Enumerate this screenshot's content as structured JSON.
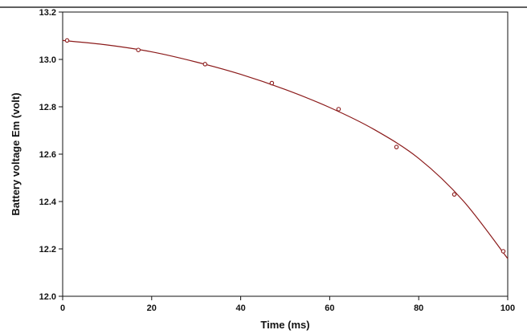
{
  "chart_data": {
    "type": "line",
    "title": "",
    "xlabel": "Time (ms)",
    "ylabel": "Battery voltage Em (volt)",
    "xlim": [
      0,
      100
    ],
    "ylim": [
      12.0,
      13.2
    ],
    "x_ticks": [
      0,
      20,
      40,
      60,
      80,
      100
    ],
    "y_ticks": [
      12.0,
      12.2,
      12.4,
      12.6,
      12.8,
      13.0,
      13.2
    ],
    "x_tick_labels": [
      "0",
      "20",
      "40",
      "60",
      "80",
      "100"
    ],
    "y_tick_labels": [
      "12.0",
      "12.2",
      "12.4",
      "12.6",
      "12.8",
      "13.0",
      "13.2"
    ],
    "grid": false,
    "series": [
      {
        "x": [
          1,
          17,
          32,
          47,
          62,
          75,
          88,
          99
        ],
        "y": [
          13.08,
          13.04,
          12.98,
          12.9,
          12.79,
          12.63,
          12.43,
          12.19
        ],
        "marker": "circle",
        "color": "#8b1a1a"
      }
    ],
    "fit_curve": {
      "x": [
        0,
        10,
        20,
        30,
        40,
        50,
        60,
        70,
        80,
        90,
        100
      ],
      "y": [
        13.08,
        13.061,
        13.032,
        12.989,
        12.937,
        12.873,
        12.797,
        12.704,
        12.582,
        12.403,
        12.159
      ],
      "color": "#8b1a1a"
    },
    "colors": {
      "axis": "#111111",
      "line": "#8b1a1a",
      "marker_fill": "#ffffff"
    }
  }
}
